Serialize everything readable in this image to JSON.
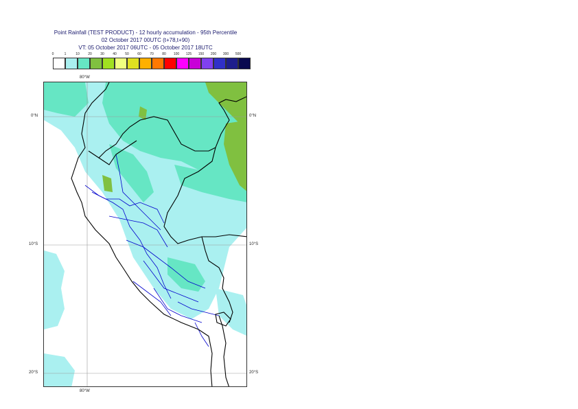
{
  "title": {
    "line1": "Point Rainfall (TEST PRODUCT) - 12 hourly accumulation - 95th Percentile",
    "line2": "02 October 2017 00UTC (t+78,t+90)",
    "line3": "VT: 05 October 2017 06UTC - 05 October 2017 18UTC"
  },
  "legend": {
    "ticks": [
      "0",
      "1",
      "10",
      "20",
      "30",
      "40",
      "50",
      "60",
      "70",
      "80",
      "100",
      "125",
      "150",
      "200",
      "300",
      "500"
    ],
    "colors": [
      "#ffffff",
      "#aaf0f0",
      "#66e6c4",
      "#80c040",
      "#a0e020",
      "#f0ff80",
      "#e0e020",
      "#ffb000",
      "#ff7800",
      "#ff0000",
      "#ff00ff",
      "#c800d8",
      "#8040f0",
      "#3030c8",
      "#1e1e8c",
      "#0a0a50"
    ]
  },
  "map": {
    "lon_labels": {
      "top": "80°W",
      "bottom": "80°W"
    },
    "lat_labels": {
      "eq_left": "0°N",
      "eq_right": "0°N",
      "s10_left": "10°S",
      "s10_right": "10°S",
      "s20_left": "20°S",
      "s20_right": "20°S"
    },
    "colors": {
      "light_cyan": "#aaf0f0",
      "teal": "#66e6c4",
      "green": "#80c040",
      "yellow_green": "#a0d028",
      "country_border": "#000000",
      "region_border": "#0000cc",
      "graticule": "#999999"
    }
  }
}
